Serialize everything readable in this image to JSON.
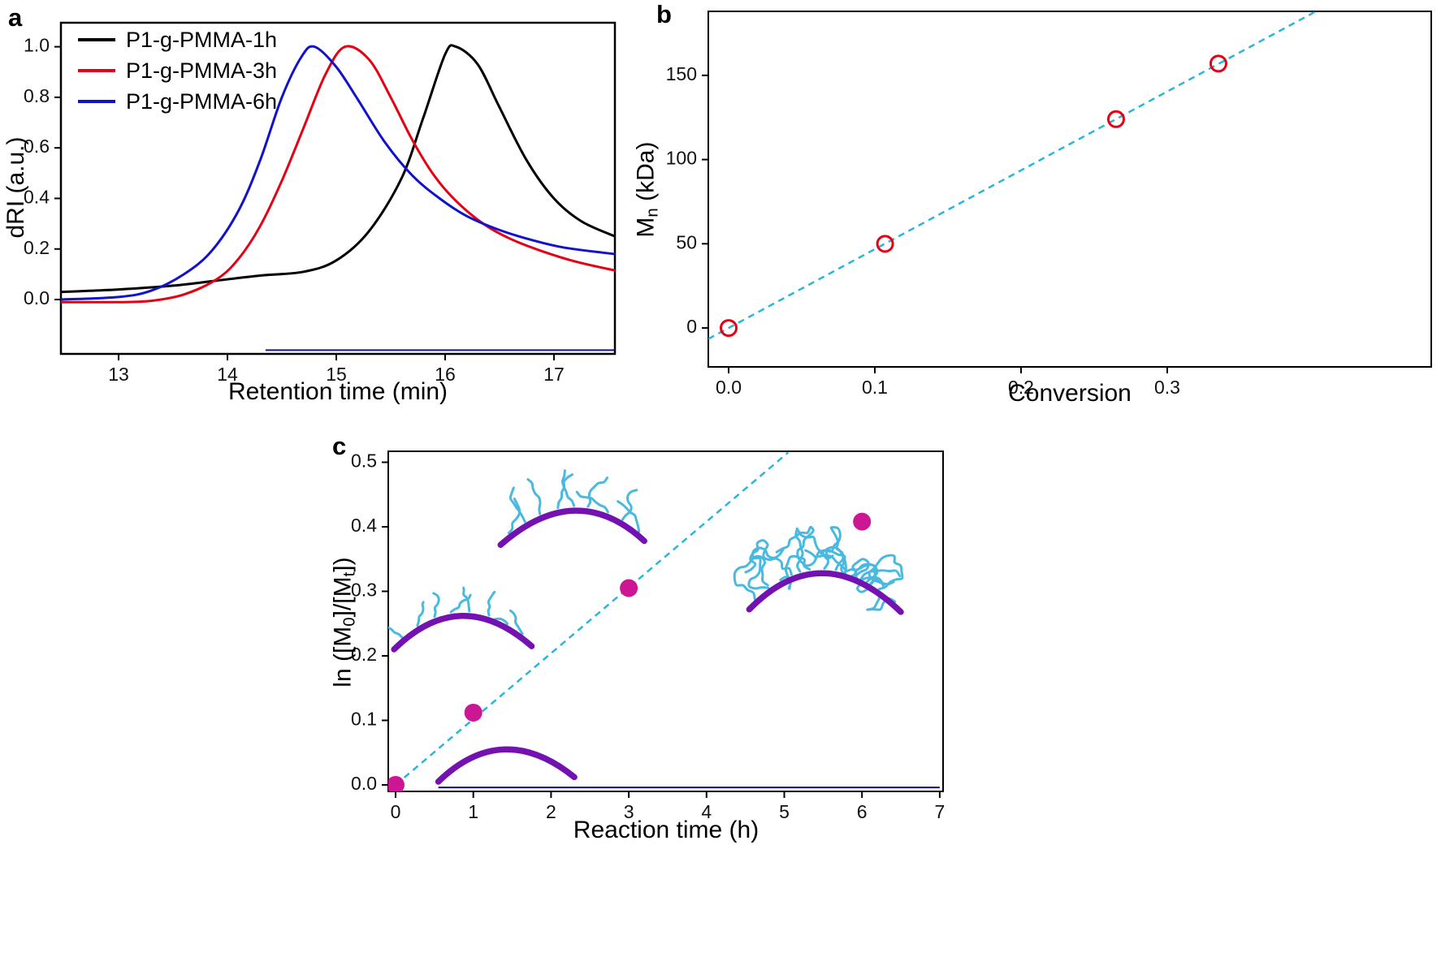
{
  "panel_labels": {
    "a": "a",
    "b": "b",
    "c": "c"
  },
  "colors": {
    "black_curve": "#000000",
    "red_curve": "#e60014",
    "blue_curve": "#1212cc",
    "fit_line_cyan": "#2bb5d8",
    "magenta_point": "#cc1694",
    "backbone_purple": "#7312b0",
    "graft_cyan": "#49b9e0",
    "baseline_navy": "#101090"
  },
  "chart_data": [
    {
      "id": "a",
      "type": "line",
      "xlabel": "Retention time (min)",
      "ylabel": "dRI (a.u.)",
      "xlim": [
        12.47,
        17.56
      ],
      "ylim": [
        -0.215,
        1.095
      ],
      "xticks": [
        13,
        14,
        15,
        16,
        17
      ],
      "xtick_labels": [
        "13",
        "14",
        "15",
        "16",
        "17"
      ],
      "yticks": [
        0.0,
        0.2,
        0.4,
        0.6,
        0.8,
        1.0
      ],
      "ytick_labels": [
        "0.0",
        "0.2",
        "0.4",
        "0.6",
        "0.8",
        "1.0"
      ],
      "legend_position": "top-left",
      "series": [
        {
          "name": "P1-g-PMMA-1h",
          "color": "#000000",
          "peak_retention_min": 16.05,
          "points": [
            [
              12.47,
              0.03
            ],
            [
              13.0,
              0.04
            ],
            [
              13.5,
              0.055
            ],
            [
              13.9,
              0.075
            ],
            [
              14.3,
              0.095
            ],
            [
              14.7,
              0.11
            ],
            [
              15.0,
              0.155
            ],
            [
              15.3,
              0.27
            ],
            [
              15.6,
              0.48
            ],
            [
              15.8,
              0.72
            ],
            [
              16.0,
              0.97
            ],
            [
              16.1,
              1.0
            ],
            [
              16.3,
              0.93
            ],
            [
              16.5,
              0.76
            ],
            [
              16.75,
              0.55
            ],
            [
              17.0,
              0.4
            ],
            [
              17.25,
              0.31
            ],
            [
              17.56,
              0.25
            ]
          ]
        },
        {
          "name": "P1-g-PMMA-3h",
          "color": "#e60014",
          "peak_retention_min": 15.08,
          "points": [
            [
              12.47,
              -0.01
            ],
            [
              13.0,
              -0.01
            ],
            [
              13.3,
              -0.005
            ],
            [
              13.6,
              0.02
            ],
            [
              13.9,
              0.08
            ],
            [
              14.1,
              0.16
            ],
            [
              14.3,
              0.29
            ],
            [
              14.5,
              0.47
            ],
            [
              14.7,
              0.68
            ],
            [
              14.9,
              0.89
            ],
            [
              15.08,
              1.0
            ],
            [
              15.3,
              0.95
            ],
            [
              15.5,
              0.8
            ],
            [
              15.7,
              0.63
            ],
            [
              15.9,
              0.49
            ],
            [
              16.1,
              0.39
            ],
            [
              16.35,
              0.3
            ],
            [
              16.6,
              0.24
            ],
            [
              16.9,
              0.19
            ],
            [
              17.2,
              0.15
            ],
            [
              17.56,
              0.115
            ]
          ]
        },
        {
          "name": "P1-g-PMMA-6h",
          "color": "#1212cc",
          "peak_retention_min": 14.8,
          "points": [
            [
              12.47,
              0.0
            ],
            [
              13.0,
              0.01
            ],
            [
              13.3,
              0.035
            ],
            [
              13.6,
              0.1
            ],
            [
              13.85,
              0.19
            ],
            [
              14.1,
              0.35
            ],
            [
              14.3,
              0.55
            ],
            [
              14.5,
              0.8
            ],
            [
              14.68,
              0.96
            ],
            [
              14.8,
              1.0
            ],
            [
              15.0,
              0.92
            ],
            [
              15.2,
              0.79
            ],
            [
              15.45,
              0.62
            ],
            [
              15.7,
              0.49
            ],
            [
              15.95,
              0.4
            ],
            [
              16.2,
              0.33
            ],
            [
              16.5,
              0.275
            ],
            [
              16.8,
              0.235
            ],
            [
              17.1,
              0.205
            ],
            [
              17.56,
              0.18
            ]
          ]
        }
      ],
      "extra_segment": {
        "name": "flat-baseline",
        "color": "#101090",
        "points": [
          [
            14.35,
            -0.2
          ],
          [
            17.56,
            -0.2
          ]
        ]
      }
    },
    {
      "id": "b",
      "type": "scatter",
      "xlabel": "Conversion",
      "ylabel": "Mn (kDa)",
      "ylabel_parts": [
        {
          "t": "M"
        },
        {
          "t": "n",
          "sub": true
        },
        {
          "t": " (kDa)"
        }
      ],
      "xlim": [
        -0.0139,
        0.4806
      ],
      "ylim": [
        -23.1,
        188
      ],
      "xticks": [
        0.0,
        0.1,
        0.2,
        0.3
      ],
      "xtick_labels": [
        "0.0",
        "0.1",
        "0.2",
        "0.3"
      ],
      "yticks": [
        0,
        50,
        100,
        150
      ],
      "ytick_labels": [
        "0",
        "50",
        "100",
        "150"
      ],
      "points": {
        "x": [
          0.0,
          0.107,
          0.265,
          0.335
        ],
        "y": [
          0,
          50,
          124,
          157
        ]
      },
      "marker": {
        "shape": "open-circle",
        "color": "#e60014",
        "radius": 9.5
      },
      "fit_line": {
        "style": "dashed",
        "color": "#2bb5d8",
        "slope": 468,
        "intercept": 0
      }
    },
    {
      "id": "c",
      "type": "scatter",
      "xlabel": "Reaction time (h)",
      "ylabel": "ln ([M0]/[Mt])",
      "ylabel_parts": [
        {
          "t": "ln ([M"
        },
        {
          "t": "0",
          "sub": true
        },
        {
          "t": "]/[M"
        },
        {
          "t": "t",
          "sub": true
        },
        {
          "t": "])"
        }
      ],
      "xlim": [
        -0.094,
        7.043
      ],
      "ylim": [
        -0.0101,
        0.517
      ],
      "xticks": [
        0,
        1,
        2,
        3,
        4,
        5,
        6,
        7
      ],
      "xtick_labels": [
        "0",
        "1",
        "2",
        "3",
        "4",
        "5",
        "6",
        "7"
      ],
      "yticks": [
        0.0,
        0.1,
        0.2,
        0.3,
        0.4,
        0.5
      ],
      "ytick_labels": [
        "0.0",
        "0.1",
        "0.2",
        "0.3",
        "0.4",
        "0.5"
      ],
      "points": {
        "x": [
          0,
          1,
          3,
          6
        ],
        "y": [
          0.0,
          0.112,
          0.305,
          0.408
        ]
      },
      "marker": {
        "shape": "filled-circle",
        "color": "#cc1694",
        "radius": 11
      },
      "fit_line": {
        "style": "dashed",
        "color": "#2bb5d8",
        "slope": 0.102,
        "intercept": 0,
        "x_start": 0,
        "x_end": 5.05
      },
      "extra_segment": {
        "name": "flat-baseline",
        "color": "#101090",
        "points": [
          [
            0.55,
            -0.004
          ],
          [
            7.0,
            -0.004
          ]
        ]
      },
      "illustrations": [
        {
          "name": "bare-backbone-arc",
          "arc_color": "#7312b0",
          "chain_color": "#49b9e0",
          "arc": {
            "x1": 0.55,
            "y1": 0.005,
            "xapex": 1.4,
            "yapex": 0.055,
            "x2": 2.3,
            "y2": 0.012
          },
          "chains": 0,
          "chain_len": 0
        },
        {
          "name": "short-graft-chains",
          "arc_color": "#7312b0",
          "chain_color": "#49b9e0",
          "arc": {
            "x1": -0.02,
            "y1": 0.21,
            "xapex": 0.85,
            "yapex": 0.262,
            "x2": 1.75,
            "y2": 0.215
          },
          "chains": 8,
          "chain_len": 0.035
        },
        {
          "name": "medium-graft-chains",
          "arc_color": "#7312b0",
          "chain_color": "#49b9e0",
          "arc": {
            "x1": 1.35,
            "y1": 0.372,
            "xapex": 2.3,
            "yapex": 0.425,
            "x2": 3.2,
            "y2": 0.378
          },
          "chains": 9,
          "chain_len": 0.05
        },
        {
          "name": "long-tangled-graft-chains",
          "arc_color": "#7312b0",
          "chain_color": "#49b9e0",
          "arc": {
            "x1": 4.55,
            "y1": 0.272,
            "xapex": 5.5,
            "yapex": 0.328,
            "x2": 6.5,
            "y2": 0.268
          },
          "chains": 13,
          "chain_len": 0.07,
          "dense": true
        }
      ]
    }
  ]
}
